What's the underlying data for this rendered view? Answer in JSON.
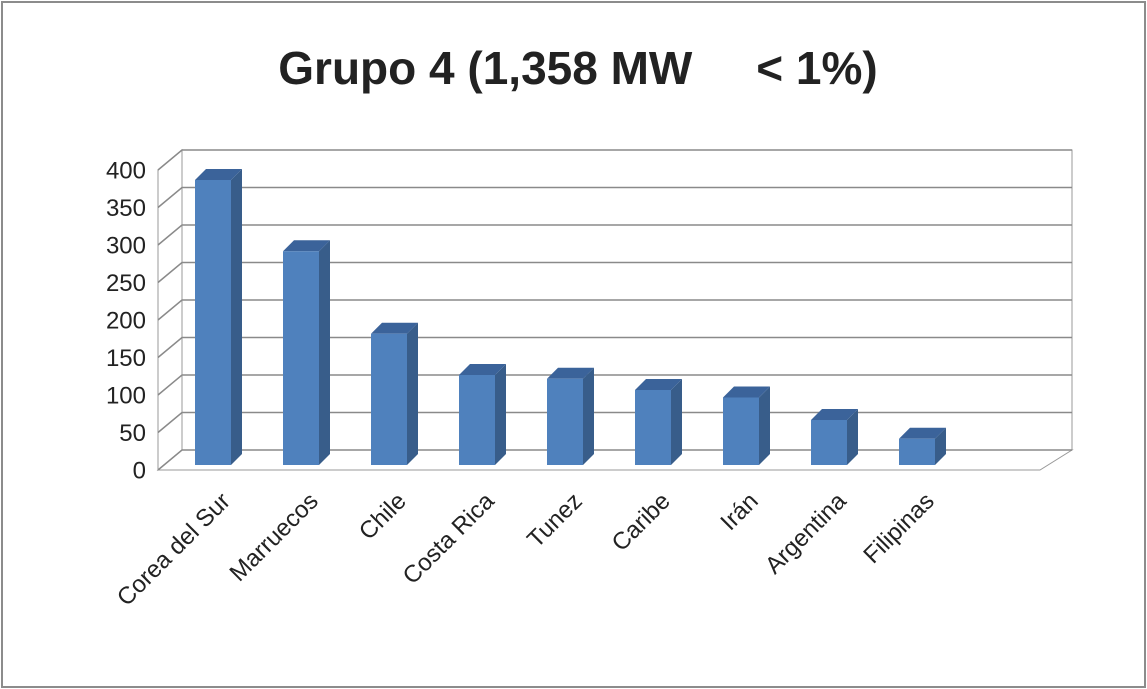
{
  "chart_data": {
    "type": "bar3d",
    "title": "Grupo 4 (1,358 MW     < 1%)",
    "categories": [
      "Corea del Sur",
      "Marruecos",
      "Chile",
      "Costa Rica",
      "Tunez",
      "Caribe",
      "Irán",
      "Argentina",
      "Filipinas"
    ],
    "values": [
      380,
      285,
      175,
      120,
      115,
      100,
      90,
      60,
      35
    ],
    "color": "#4f81bd",
    "ylim": [
      0,
      400
    ],
    "yticks": [
      0,
      50,
      100,
      150,
      200,
      250,
      300,
      350,
      400
    ],
    "grid": true
  }
}
